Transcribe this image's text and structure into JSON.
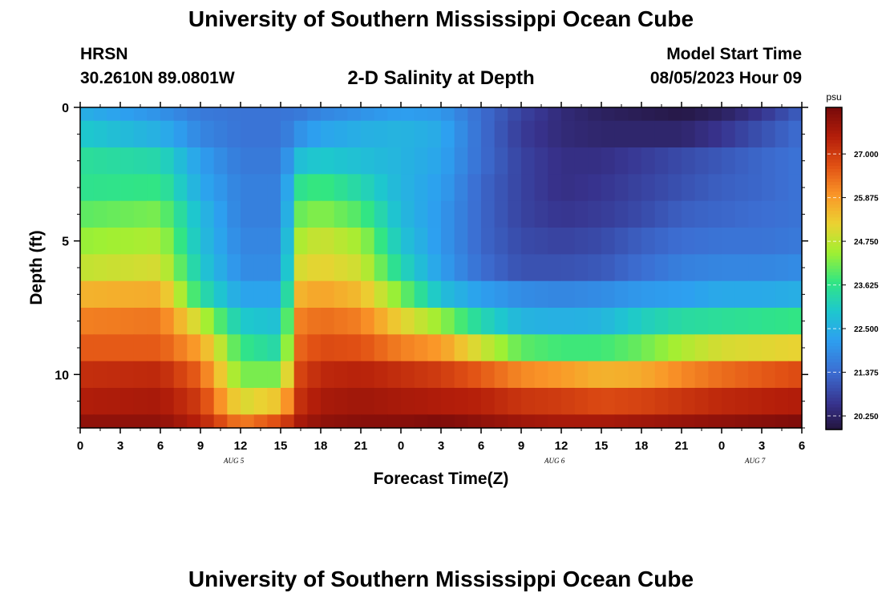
{
  "header": {
    "title": "University of Southern Mississippi Ocean Cube",
    "station": "HRSN",
    "coords": "30.2610N  89.0801W",
    "plot_title": "2-D Salinity at Depth",
    "model_start_label": "Model Start Time",
    "model_start_value": "08/05/2023 Hour 09"
  },
  "footer": {
    "title": "University of Southern Mississippi Ocean Cube"
  },
  "chart_data": {
    "type": "heatmap",
    "title": "2-D Salinity at Depth",
    "xlabel": "Forecast Time(Z)",
    "ylabel": "Depth (ft)",
    "x_range_hours": [
      0,
      54
    ],
    "x_tick_labels": [
      "0",
      "3",
      "6",
      "9",
      "12",
      "15",
      "18",
      "21",
      "0",
      "3",
      "6",
      "9",
      "12",
      "15",
      "18",
      "21",
      "0",
      "3",
      "6"
    ],
    "date_labels": [
      {
        "hour": 11.5,
        "text": "AUG 5"
      },
      {
        "hour": 35.5,
        "text": "AUG 6"
      },
      {
        "hour": 50.5,
        "text": "AUG 7"
      }
    ],
    "y_range_ft": [
      0,
      12
    ],
    "y_tick_labels": [
      "0",
      "5",
      "10"
    ],
    "y_tick_values": [
      0,
      5,
      10
    ],
    "colorbar": {
      "unit": "psu",
      "min": 19.9,
      "max": 28.2,
      "tick_values": [
        27.0,
        25.875,
        24.75,
        23.625,
        22.5,
        21.375,
        20.25
      ],
      "tick_labels": [
        "27.000",
        "25.875",
        "24.750",
        "23.625",
        "22.500",
        "21.375",
        "20.250"
      ]
    },
    "layer_tops_ft": [
      0,
      0.5,
      1.5,
      2.5,
      3.5,
      4.5,
      5.5,
      6.5,
      7.5,
      8.5,
      9.5,
      10.5,
      11.5
    ],
    "layer_bottoms_ft": [
      0.5,
      1.5,
      2.5,
      3.5,
      4.5,
      5.5,
      6.5,
      7.5,
      8.5,
      9.5,
      10.5,
      11.5,
      12
    ],
    "key_hours": [
      0,
      6,
      9,
      12,
      15,
      16.5,
      18,
      21,
      24,
      27,
      30,
      33,
      36,
      39,
      42,
      45,
      48,
      51,
      54
    ],
    "salinity_psu": [
      [
        22.5,
        22.0,
        21.6,
        21.5,
        21.5,
        21.6,
        21.8,
        22.0,
        22.2,
        22.1,
        21.4,
        20.8,
        20.4,
        20.2,
        20.1,
        20.0,
        20.2,
        20.6,
        21.2
      ],
      [
        23.0,
        22.5,
        21.8,
        21.5,
        21.5,
        22.0,
        22.3,
        22.5,
        22.6,
        22.4,
        21.4,
        20.7,
        20.4,
        20.3,
        20.3,
        20.3,
        20.6,
        21.0,
        21.4
      ],
      [
        23.5,
        23.3,
        22.2,
        21.6,
        21.6,
        22.8,
        23.0,
        22.8,
        22.6,
        22.3,
        21.4,
        20.8,
        20.5,
        20.5,
        20.7,
        20.9,
        21.1,
        21.3,
        21.5
      ],
      [
        23.6,
        23.7,
        22.4,
        21.7,
        21.7,
        23.6,
        23.8,
        23.3,
        22.6,
        22.2,
        21.3,
        20.8,
        20.5,
        20.6,
        20.8,
        21.0,
        21.2,
        21.3,
        21.5
      ],
      [
        24.0,
        24.2,
        22.7,
        21.7,
        21.7,
        24.1,
        24.3,
        23.9,
        22.7,
        22.1,
        21.3,
        20.8,
        20.6,
        20.7,
        20.9,
        21.2,
        21.3,
        21.4,
        21.5
      ],
      [
        24.4,
        24.6,
        22.8,
        21.8,
        21.8,
        24.6,
        24.9,
        24.5,
        22.9,
        22.1,
        21.3,
        20.9,
        20.8,
        20.9,
        21.2,
        21.4,
        21.5,
        21.5,
        21.6
      ],
      [
        24.8,
        25.0,
        23.0,
        21.9,
        21.9,
        25.0,
        25.2,
        24.9,
        23.3,
        22.2,
        21.4,
        21.0,
        21.0,
        21.1,
        21.4,
        21.7,
        21.8,
        21.8,
        21.9
      ],
      [
        25.6,
        25.7,
        23.5,
        22.3,
        22.3,
        25.6,
        25.8,
        25.5,
        24.2,
        22.8,
        22.2,
        21.9,
        21.8,
        21.9,
        22.1,
        22.2,
        22.4,
        22.4,
        22.5
      ],
      [
        26.2,
        26.3,
        24.8,
        23.0,
        22.8,
        26.2,
        26.4,
        26.2,
        25.2,
        24.4,
        23.3,
        22.6,
        22.5,
        22.6,
        23.1,
        23.4,
        23.5,
        23.6,
        23.7
      ],
      [
        26.6,
        26.6,
        25.8,
        23.7,
        23.3,
        26.5,
        26.8,
        26.7,
        26.2,
        25.9,
        24.9,
        24.0,
        23.8,
        23.8,
        24.1,
        24.6,
        25.0,
        25.1,
        25.2
      ],
      [
        27.2,
        27.3,
        26.5,
        24.2,
        24.2,
        26.9,
        27.3,
        27.4,
        27.2,
        27.0,
        26.6,
        26.1,
        25.9,
        25.6,
        25.7,
        26.1,
        26.4,
        26.6,
        26.8
      ],
      [
        27.5,
        27.6,
        27.0,
        25.0,
        25.4,
        27.2,
        27.6,
        27.7,
        27.6,
        27.5,
        27.4,
        27.1,
        27.0,
        26.8,
        26.9,
        27.1,
        27.3,
        27.4,
        27.5
      ],
      [
        27.9,
        27.9,
        27.4,
        26.2,
        26.8,
        27.6,
        27.9,
        28.0,
        28.0,
        28.1,
        27.9,
        27.7,
        27.6,
        27.6,
        27.7,
        27.8,
        27.9,
        28.0,
        28.1
      ]
    ]
  }
}
